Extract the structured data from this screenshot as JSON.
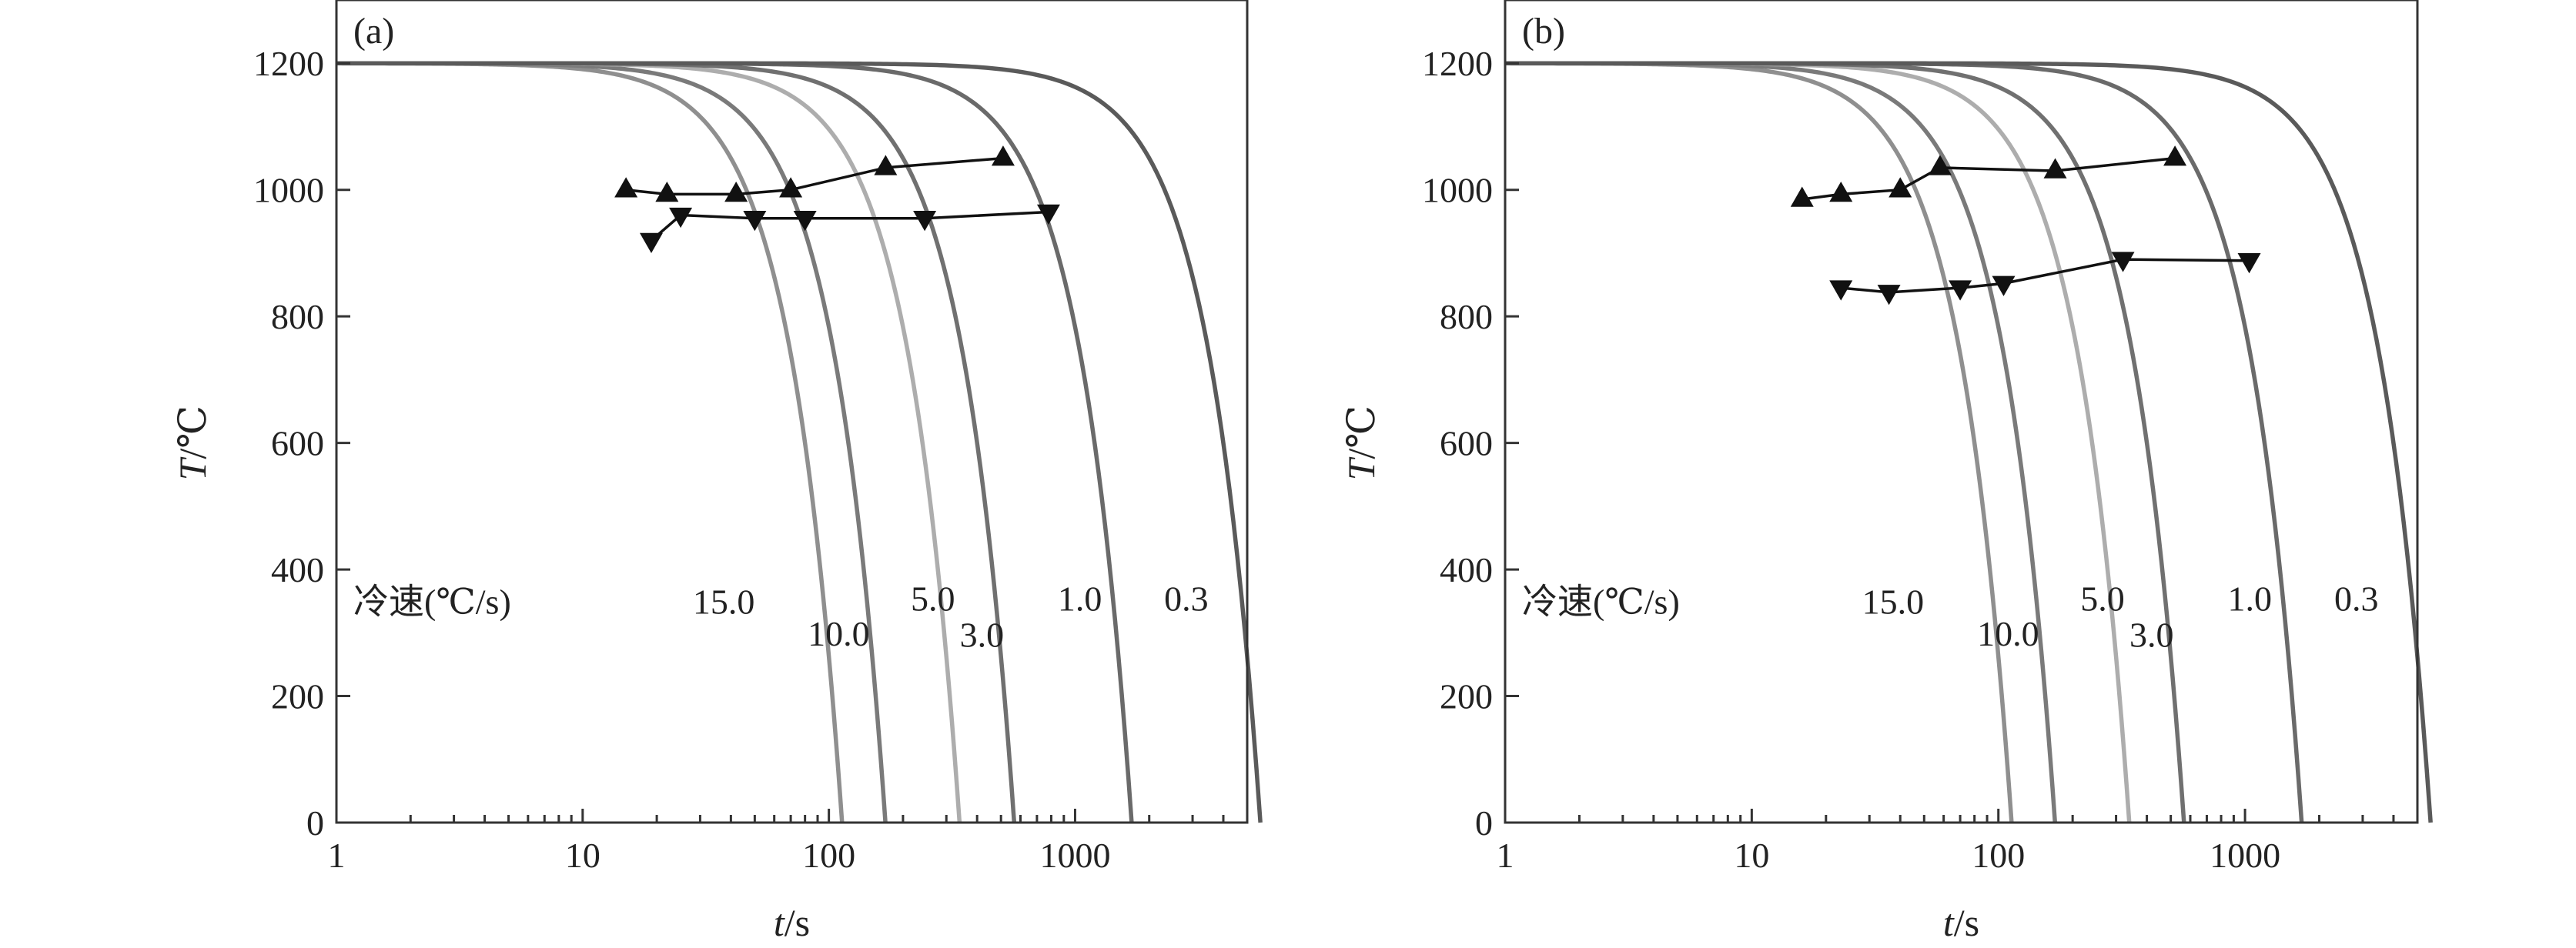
{
  "chart_data": [
    {
      "type": "line",
      "panel_label": "(a)",
      "xlabel": "t/s",
      "ylabel": "T/℃",
      "xscale": "log",
      "xlim": [
        1,
        5000
      ],
      "ylim": [
        0,
        1300
      ],
      "x_ticks": [
        1,
        10,
        100,
        1000
      ],
      "x_tick_labels": [
        "1",
        "10",
        "100",
        "1000"
      ],
      "y_ticks": [
        0,
        200,
        400,
        600,
        800,
        1000,
        1200
      ],
      "y_tick_labels": [
        "0",
        "200",
        "400",
        "600",
        "800",
        "1000",
        "1200"
      ],
      "grid": false,
      "legend_title": "冷速(℃/s)",
      "start_temperature": 1200,
      "series": [
        {
          "name": "15.0",
          "rate": 15.0,
          "color": "#8f8f8f",
          "label_at": [
            28,
            330
          ]
        },
        {
          "name": "10.0",
          "rate": 10.0,
          "color": "#7a7a7a",
          "label_at": [
            82,
            280
          ]
        },
        {
          "name": "5.0",
          "rate": 5.0,
          "color": "#adadad",
          "label_at": [
            215,
            335
          ]
        },
        {
          "name": "3.0",
          "rate": 3.0,
          "color": "#707070",
          "label_at": [
            340,
            278
          ]
        },
        {
          "name": "1.0",
          "rate": 1.0,
          "color": "#6a6a6a",
          "label_at": [
            850,
            335
          ]
        },
        {
          "name": "0.3",
          "rate": 0.3,
          "color": "#5a5a5a",
          "label_at": [
            2300,
            335
          ]
        }
      ],
      "start_points": {
        "marker": "triangle-up",
        "x": [
          15,
          22,
          42,
          70,
          170,
          510
        ],
        "y": [
          1000,
          993,
          993,
          1000,
          1035,
          1050
        ]
      },
      "finish_points": {
        "marker": "triangle-down",
        "x": [
          19,
          25,
          50,
          80,
          245,
          780
        ],
        "y": [
          920,
          960,
          955,
          955,
          955,
          965
        ]
      }
    },
    {
      "type": "line",
      "panel_label": "(b)",
      "xlabel": "t/s",
      "ylabel": "T/℃",
      "xscale": "log",
      "xlim": [
        1,
        5000
      ],
      "ylim": [
        0,
        1300
      ],
      "x_ticks": [
        1,
        10,
        100,
        1000
      ],
      "x_tick_labels": [
        "1",
        "10",
        "100",
        "1000"
      ],
      "y_ticks": [
        0,
        200,
        400,
        600,
        800,
        1000,
        1200
      ],
      "y_tick_labels": [
        "0",
        "200",
        "400",
        "600",
        "800",
        "1000",
        "1200"
      ],
      "grid": false,
      "legend_title": "冷速(℃/s)",
      "start_temperature": 1200,
      "series": [
        {
          "name": "15.0",
          "rate": 15.0,
          "color": "#8f8f8f",
          "label_at": [
            28,
            330
          ]
        },
        {
          "name": "10.0",
          "rate": 10.0,
          "color": "#7a7a7a",
          "label_at": [
            82,
            280
          ]
        },
        {
          "name": "5.0",
          "rate": 5.0,
          "color": "#adadad",
          "label_at": [
            215,
            335
          ]
        },
        {
          "name": "3.0",
          "rate": 3.0,
          "color": "#707070",
          "label_at": [
            340,
            278
          ]
        },
        {
          "name": "1.0",
          "rate": 1.0,
          "color": "#6a6a6a",
          "label_at": [
            850,
            335
          ]
        },
        {
          "name": "0.3",
          "rate": 0.3,
          "color": "#5a5a5a",
          "label_at": [
            2300,
            335
          ]
        }
      ],
      "start_points": {
        "marker": "triangle-up",
        "x": [
          16,
          23,
          40,
          58,
          170,
          520
        ],
        "y": [
          985,
          993,
          1000,
          1035,
          1030,
          1050
        ]
      },
      "finish_points": {
        "marker": "triangle-down",
        "x": [
          23,
          36,
          70,
          105,
          320,
          1040
        ],
        "y": [
          845,
          838,
          845,
          852,
          890,
          888
        ]
      }
    }
  ]
}
